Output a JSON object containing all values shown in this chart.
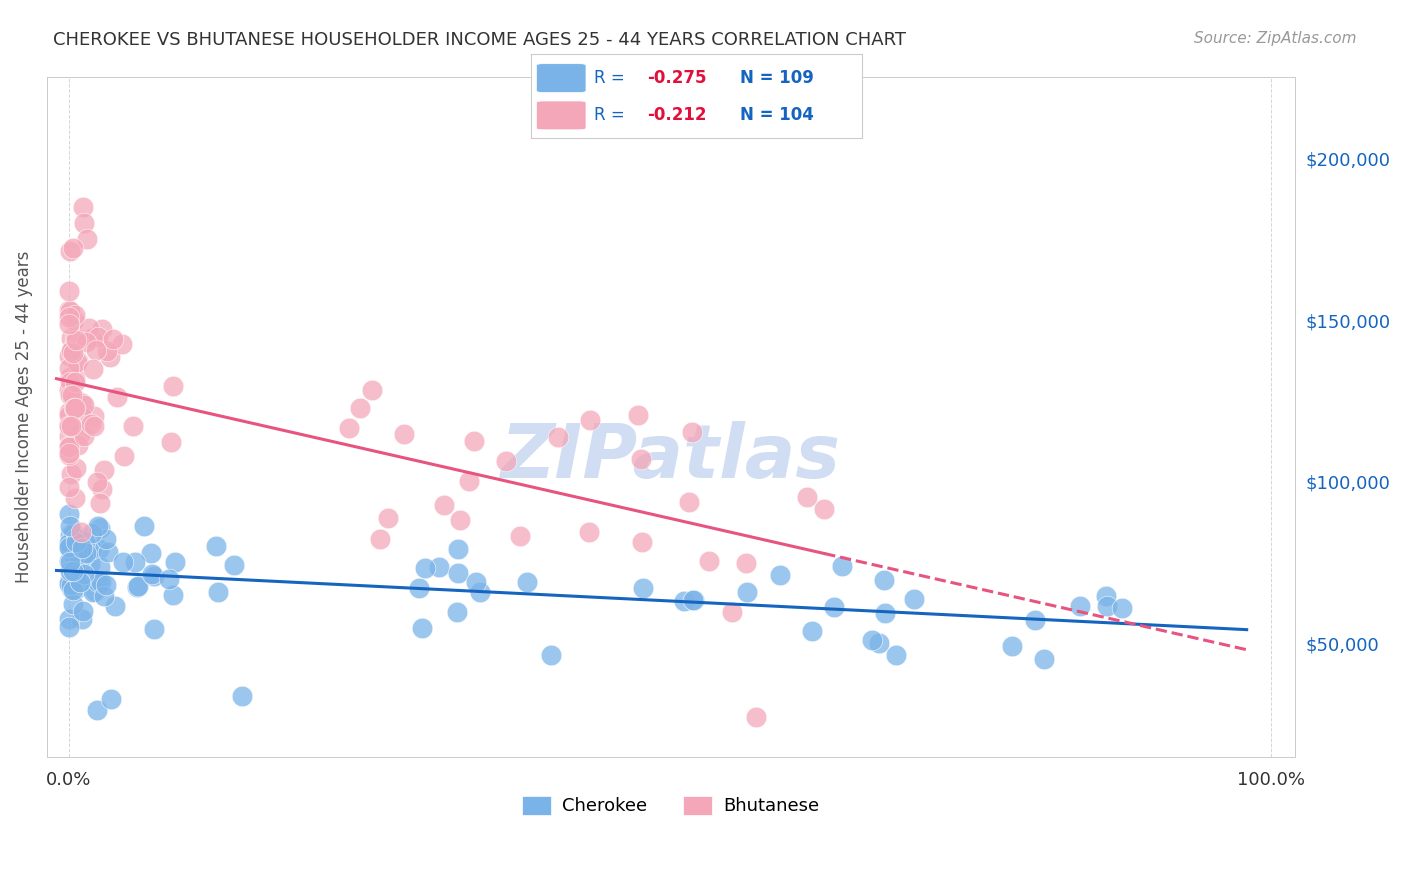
{
  "title": "CHEROKEE VS BHUTANESE HOUSEHOLDER INCOME AGES 25 - 44 YEARS CORRELATION CHART",
  "source": "Source: ZipAtlas.com",
  "ylabel": "Householder Income Ages 25 - 44 years",
  "cherokee_R": -0.275,
  "cherokee_N": 109,
  "bhutanese_R": -0.212,
  "bhutanese_N": 104,
  "cherokee_color": "#7ab3e8",
  "bhutanese_color": "#f4a7b9",
  "cherokee_line_color": "#1565C0",
  "bhutanese_line_color": "#e75480",
  "watermark_color": "#c8d8f0",
  "legend_text_color": "#1565C0",
  "negative_val_color": "#e0103a"
}
